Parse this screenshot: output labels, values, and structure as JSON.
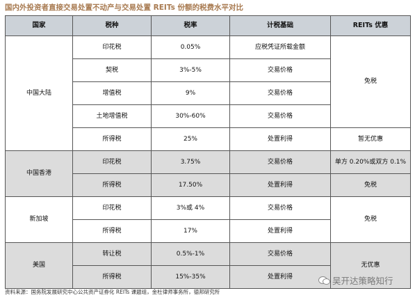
{
  "title": "国内外投资者直接交易处置不动产与交易处置 REITs 份额的税费水平对比",
  "headers": [
    "国家",
    "税种",
    "税率",
    "计税基础",
    "REITs 优惠"
  ],
  "regions": {
    "mainland": "中国大陆",
    "hongkong": "中国香港",
    "singapore": "新加坡",
    "usa": "美国"
  },
  "rows": [
    {
      "tax": "印花税",
      "rate": "0.05%",
      "basis": "应税凭证所载金额"
    },
    {
      "tax": "契税",
      "rate": "3%-5%",
      "basis": "交易价格"
    },
    {
      "tax": "增值税",
      "rate": "9%",
      "basis": "交易价格"
    },
    {
      "tax": "土地增值税",
      "rate": "30%-60%",
      "basis": "交易价格"
    },
    {
      "tax": "所得税",
      "rate": "25%",
      "basis": "处置利得"
    },
    {
      "tax": "印花税",
      "rate": "3.75%",
      "basis": "交易价格"
    },
    {
      "tax": "所得税",
      "rate": "17.50%",
      "basis": "处置利得"
    },
    {
      "tax": "印花税",
      "rate": "3%或 4%",
      "basis": "交易价格"
    },
    {
      "tax": "所得税",
      "rate": "17%",
      "basis": "处置利得"
    },
    {
      "tax": "转让税",
      "rate": "0.5%-1%",
      "basis": "交易价格"
    },
    {
      "tax": "所得税",
      "rate": "15%-35%",
      "basis": "处置利得"
    }
  ],
  "benefits": {
    "mainland_main": "免税",
    "mainland_income": "暂无优惠",
    "hk_stamp": "单方 0.20%或双方 0.1%",
    "hk_income": "免税",
    "sg": "免税",
    "us": "无优惠"
  },
  "footer": "资料来源：国务院发展研究中心公共资产证券化 REITs 课题组，金杜律师事务所，德邦研究所",
  "watermark": {
    "text": "吴开达策略知行",
    "icon": "wechat-icon"
  }
}
